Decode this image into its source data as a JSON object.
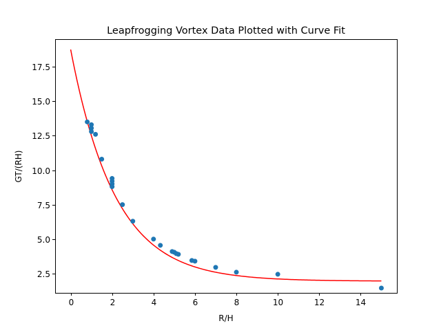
{
  "chart_data": {
    "type": "scatter",
    "title": "Leapfrogging Vortex Data Plotted with Curve Fit",
    "xlabel": "R/H",
    "ylabel": "GT/(RH)",
    "xlim": [
      -0.75,
      15.75
    ],
    "ylim": [
      1.1,
      19.5
    ],
    "xticks": [
      0,
      2,
      4,
      6,
      8,
      10,
      12,
      14
    ],
    "xtick_labels": [
      "0",
      "2",
      "4",
      "6",
      "8",
      "10",
      "12",
      "14"
    ],
    "yticks": [
      2.5,
      5.0,
      7.5,
      10.0,
      12.5,
      15.0,
      17.5
    ],
    "ytick_labels": [
      "2.5",
      "5.0",
      "7.5",
      "10.0",
      "12.5",
      "15.0",
      "17.5"
    ],
    "grid": false,
    "series": [
      {
        "kind": "scatter",
        "color": "#1f77b4",
        "points": [
          [
            0.8,
            13.5
          ],
          [
            1.0,
            13.3
          ],
          [
            1.0,
            13.05
          ],
          [
            1.0,
            12.8
          ],
          [
            1.2,
            12.6
          ],
          [
            1.5,
            10.8
          ],
          [
            2.0,
            9.4
          ],
          [
            2.0,
            9.2
          ],
          [
            2.0,
            9.0
          ],
          [
            2.0,
            8.8
          ],
          [
            2.5,
            7.5
          ],
          [
            3.0,
            6.3
          ],
          [
            4.0,
            5.0
          ],
          [
            4.33,
            4.55
          ],
          [
            4.9,
            4.1
          ],
          [
            5.0,
            4.05
          ],
          [
            5.1,
            3.95
          ],
          [
            5.2,
            3.9
          ],
          [
            5.85,
            3.45
          ],
          [
            6.0,
            3.4
          ],
          [
            7.0,
            2.95
          ],
          [
            8.0,
            2.6
          ],
          [
            10.0,
            2.45
          ],
          [
            15.0,
            1.45
          ]
        ]
      },
      {
        "kind": "line",
        "color": "#ff0000",
        "curve_fit": {
          "form": "a*exp(-b*x)+c",
          "a": 16.8,
          "b": 0.465,
          "c": 1.95,
          "x_range": [
            0,
            15
          ]
        }
      }
    ]
  }
}
